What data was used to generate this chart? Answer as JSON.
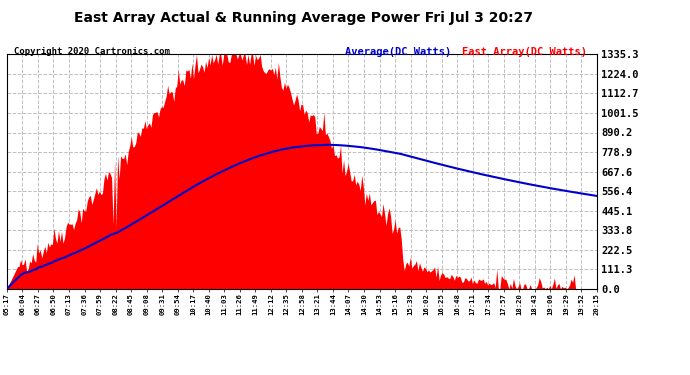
{
  "title": "East Array Actual & Running Average Power Fri Jul 3 20:27",
  "copyright": "Copyright 2020 Cartronics.com",
  "legend_avg": "Average(DC Watts)",
  "legend_east": "East Array(DC Watts)",
  "ylabel_values": [
    0.0,
    111.3,
    222.5,
    333.8,
    445.1,
    556.4,
    667.6,
    778.9,
    890.2,
    1001.5,
    1112.7,
    1224.0,
    1335.3
  ],
  "ymax": 1335.3,
  "bg_color": "#ffffff",
  "plot_bg_color": "#ffffff",
  "fill_color": "#ff0000",
  "avg_color": "#0000cc",
  "title_color": "#000000",
  "grid_color": "#c0c0c0",
  "x_tick_labels": [
    "05:17",
    "06:04",
    "06:27",
    "06:50",
    "07:13",
    "07:36",
    "07:59",
    "08:22",
    "08:45",
    "09:08",
    "09:31",
    "09:54",
    "10:17",
    "10:40",
    "11:03",
    "11:26",
    "11:49",
    "12:12",
    "12:35",
    "12:58",
    "13:21",
    "13:44",
    "14:07",
    "14:30",
    "14:53",
    "15:16",
    "15:39",
    "16:02",
    "16:25",
    "16:48",
    "17:11",
    "17:34",
    "17:57",
    "18:20",
    "18:43",
    "19:06",
    "19:29",
    "19:52",
    "20:15"
  ],
  "n_points": 390,
  "east_array_peak": 1335.3,
  "avg_peak": 820.0
}
